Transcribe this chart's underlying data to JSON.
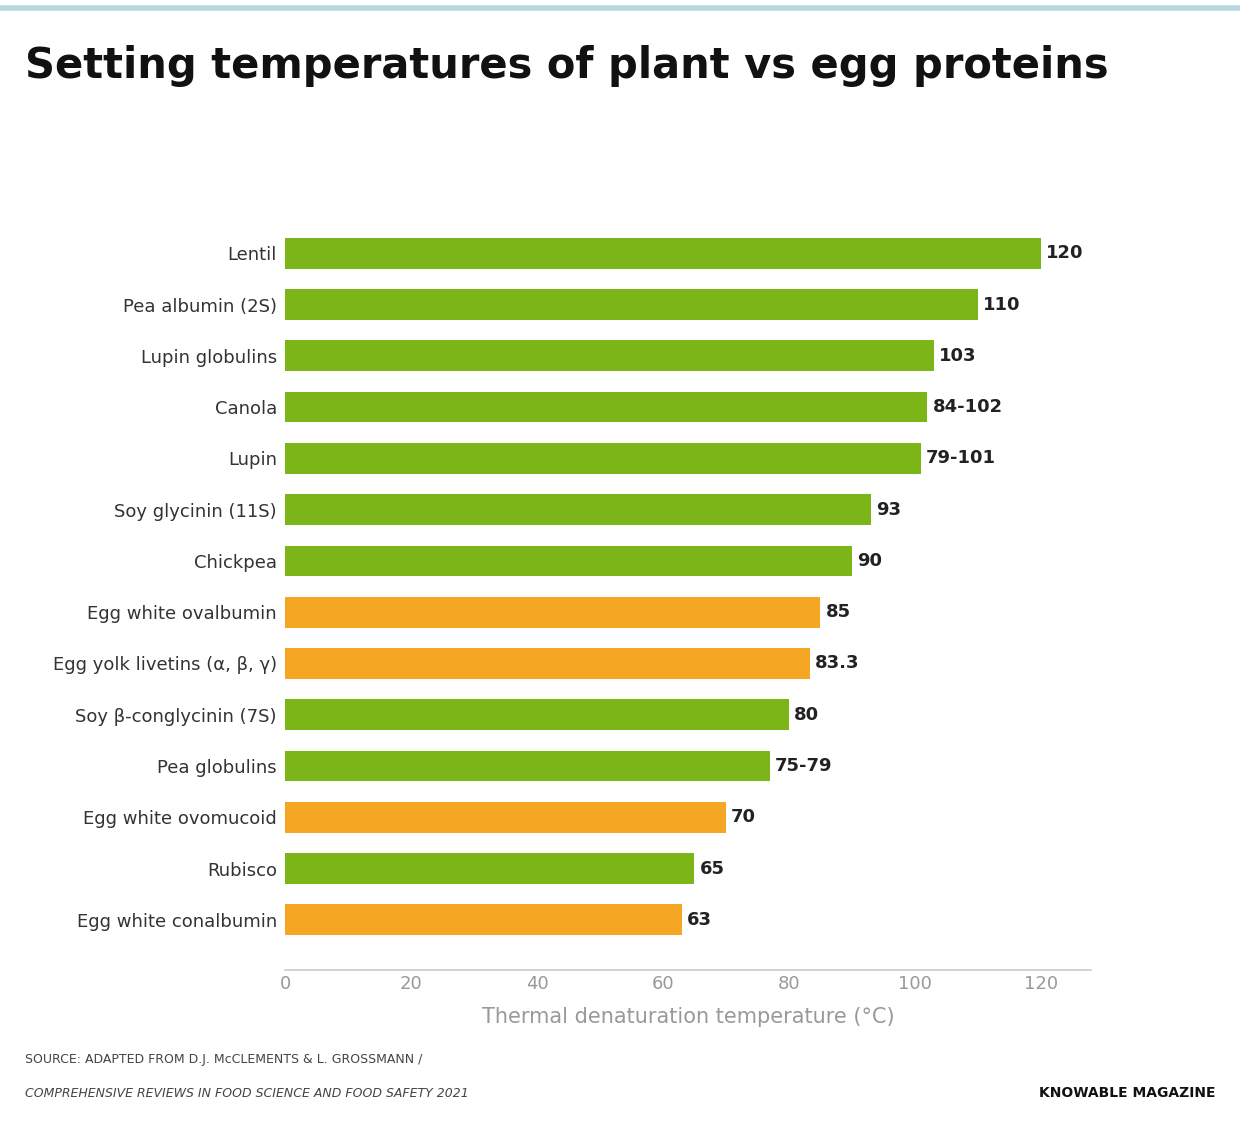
{
  "title": "Setting temperatures of plant vs egg proteins",
  "categories": [
    "Egg white conalbumin",
    "Rubisco",
    "Egg white ovomucoid",
    "Pea globulins",
    "Soy β-conglycinin (7S)",
    "Egg yolk livetins (α, β, γ)",
    "Egg white ovalbumin",
    "Chickpea",
    "Soy glycinin (11S)",
    "Lupin",
    "Canola",
    "Lupin globulins",
    "Pea albumin (2S)",
    "Lentil"
  ],
  "bar_values": [
    63,
    65,
    70,
    77,
    80,
    83.3,
    85,
    90,
    93,
    101,
    102,
    103,
    110,
    120
  ],
  "labels": [
    "63",
    "65",
    "70",
    "75-79",
    "80",
    "83.3",
    "85",
    "90",
    "93",
    "79-101",
    "84-102",
    "103",
    "110",
    "120"
  ],
  "colors": [
    "#F5A623",
    "#7CB518",
    "#F5A623",
    "#7CB518",
    "#7CB518",
    "#F5A623",
    "#F5A623",
    "#7CB518",
    "#7CB518",
    "#7CB518",
    "#7CB518",
    "#7CB518",
    "#7CB518",
    "#7CB518"
  ],
  "xlabel": "Thermal denaturation temperature (°C)",
  "xlim": [
    0,
    128
  ],
  "xticks": [
    0,
    20,
    40,
    60,
    80,
    100,
    120
  ],
  "source_line1": "SOURCE: ADAPTED FROM D.J. McCLEMENTS & L. GROSSMANN /",
  "source_line2": "COMPREHENSIVE REVIEWS IN FOOD SCIENCE AND FOOD SAFETY 2021",
  "credit_text": "KNOWABLE MAGAZINE",
  "bar_color_plant": "#7CB518",
  "bar_color_egg": "#F5A623",
  "title_fontsize": 30,
  "tick_fontsize": 13,
  "xlabel_fontsize": 15,
  "background_color": "#FFFFFF",
  "top_line_color": "#b8d8dc",
  "axis_line_color": "#cccccc",
  "xlabel_color": "#999999",
  "xtick_color": "#999999",
  "ytick_color": "#333333",
  "label_value_color": "#222222"
}
